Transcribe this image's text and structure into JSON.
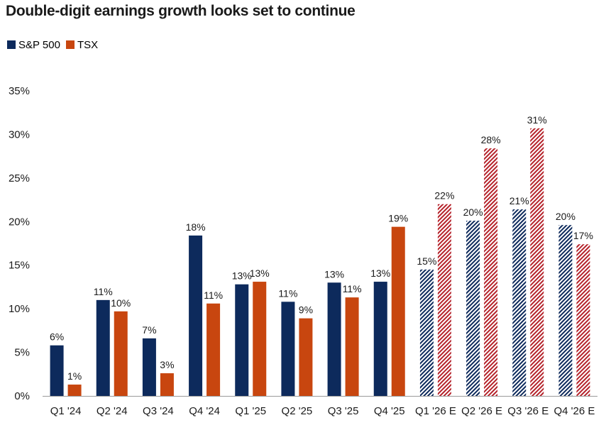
{
  "chart_data": {
    "type": "bar",
    "title": "Double-digit earnings growth looks set to continue",
    "xlabel": "",
    "ylabel": "",
    "ylim": [
      0,
      35
    ],
    "yticks": [
      0,
      5,
      10,
      15,
      20,
      25,
      30,
      35
    ],
    "ytick_labels": [
      "0%",
      "5%",
      "10%",
      "15%",
      "20%",
      "25%",
      "30%",
      "35%"
    ],
    "grid": false,
    "legend_position": "top-left",
    "categories": [
      "Q1 '24",
      "Q2 '24",
      "Q3 '24",
      "Q4 '24",
      "Q1 '25",
      "Q2 '25",
      "Q3 '25",
      "Q4 '25",
      "Q1 '26 E",
      "Q2 '26 E",
      "Q3 '26 E",
      "Q4 '26 E"
    ],
    "estimate_categories": [
      "Q1 '26 E",
      "Q2 '26 E",
      "Q3 '26 E",
      "Q4 '26 E"
    ],
    "series": [
      {
        "name": "S&P 500",
        "color": "#0d2a5c",
        "values": [
          5.8,
          11.0,
          6.6,
          18.4,
          12.8,
          10.8,
          13.0,
          13.1,
          14.5,
          20.1,
          21.4,
          19.6
        ],
        "labels": [
          "6%",
          "11%",
          "7%",
          "18%",
          "13%",
          "11%",
          "13%",
          "13%",
          "15%",
          "20%",
          "21%",
          "20%"
        ]
      },
      {
        "name": "TSX",
        "color": "#c8460f",
        "estimate_color": "#b5232b",
        "values": [
          1.3,
          9.7,
          2.6,
          10.6,
          13.1,
          8.9,
          11.3,
          19.4,
          22.0,
          28.4,
          30.7,
          17.4
        ],
        "labels": [
          "1%",
          "10%",
          "3%",
          "11%",
          "13%",
          "9%",
          "11%",
          "19%",
          "22%",
          "28%",
          "31%",
          "17%"
        ]
      }
    ]
  }
}
